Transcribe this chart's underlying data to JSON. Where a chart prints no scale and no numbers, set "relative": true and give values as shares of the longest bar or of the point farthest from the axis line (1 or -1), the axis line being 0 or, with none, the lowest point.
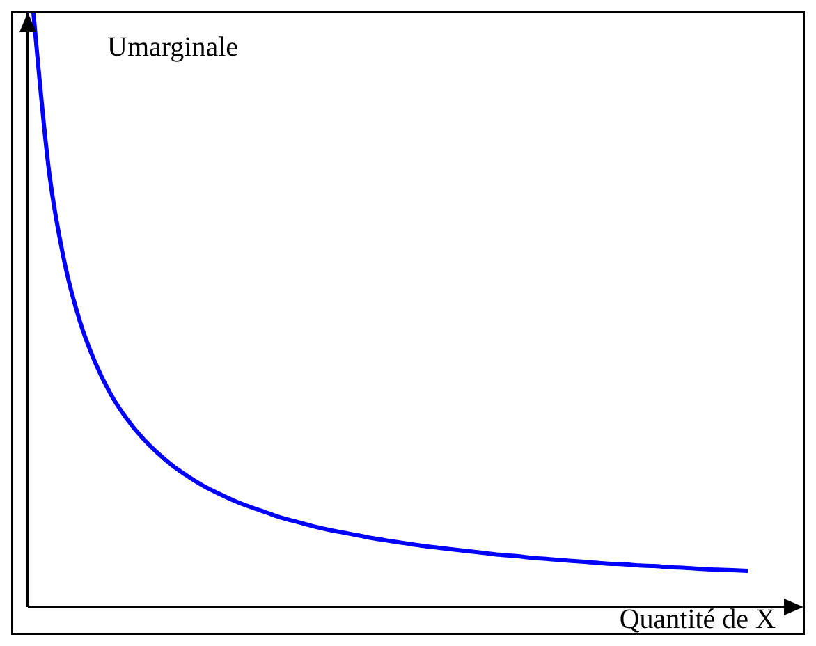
{
  "chart_data": {
    "type": "line",
    "relative": true,
    "xlabel": "Quantité de X",
    "ylabel": "Umarginale",
    "categories": [
      null,
      null,
      null,
      null,
      null,
      null,
      null,
      null,
      null,
      null,
      null,
      null,
      null,
      null,
      null,
      null,
      null,
      null,
      null,
      null,
      null,
      null,
      null,
      null,
      null,
      null,
      null,
      null,
      null,
      null,
      null,
      null,
      null,
      null,
      null,
      null,
      null,
      null,
      null,
      null,
      null,
      null,
      null,
      null,
      null,
      null,
      null
    ],
    "series": [
      {
        "color": "#0000ff",
        "values": [
          1,
          0.734,
          0.58,
          0.48,
          0.41,
          0.357,
          0.317,
          0.285,
          0.259,
          0.237,
          0.219,
          0.203,
          0.19,
          0.178,
          0.168,
          0.159,
          0.15,
          0.143,
          0.136,
          0.13,
          0.125,
          0.12,
          0.115,
          0.111,
          0.107,
          0.103,
          0.1,
          0.097,
          0.094,
          0.091,
          0.088,
          0.086,
          0.083,
          0.081,
          0.079,
          0.077,
          0.075,
          0.073,
          0.072,
          0.07,
          0.069,
          0.067,
          0.066,
          0.064,
          0.063,
          0.062,
          0.061
        ]
      }
    ],
    "legend": false,
    "grid": false,
    "marker": "none",
    "line_style": "solid"
  }
}
